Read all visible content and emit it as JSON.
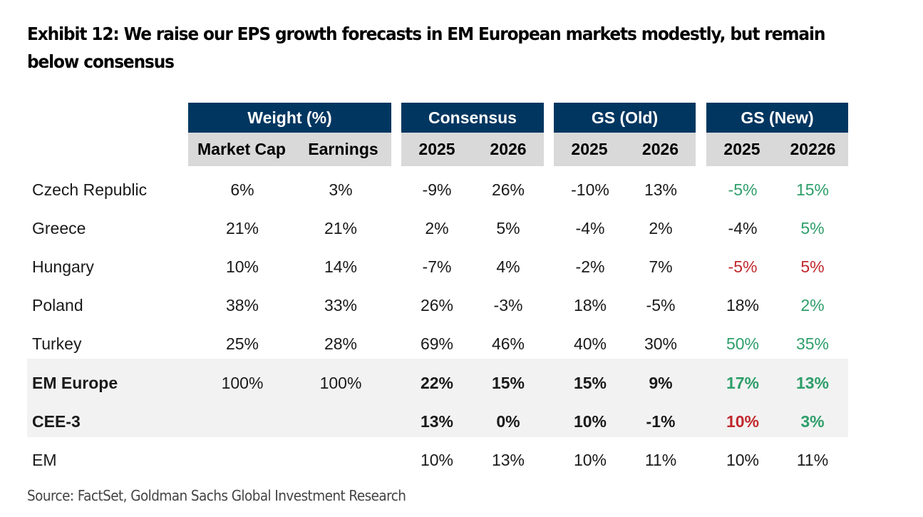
{
  "title": "Exhibit 12: We raise our EPS growth forecasts in EM European markets modestly, but remain below consensus",
  "source": "Source: FactSet, Goldman Sachs Global Investment Research",
  "colors": {
    "header_bg": "#003660",
    "subheader_bg": "#d9d9d9",
    "aggregate_band": "#f2f2f2",
    "positive_revision": "#2e9e6a",
    "negative_revision": "#c0282e"
  },
  "header": {
    "groups": [
      {
        "label": "Weight (%)",
        "columns": [
          "Market Cap",
          "Earnings"
        ]
      },
      {
        "label": "Consensus",
        "columns": [
          "2025",
          "2026"
        ]
      },
      {
        "label": "GS (Old)",
        "columns": [
          "2025",
          "2026"
        ]
      },
      {
        "label": "GS (New)",
        "columns": [
          "2025",
          "20226"
        ]
      }
    ]
  },
  "rows": [
    {
      "label": "Czech Republic",
      "bold": false,
      "values": [
        "6%",
        "3%",
        "-9%",
        "26%",
        "-10%",
        "13%",
        "-5%",
        "15%"
      ],
      "gs_new_colors": [
        "green",
        "green"
      ]
    },
    {
      "label": "Greece",
      "bold": false,
      "values": [
        "21%",
        "21%",
        "2%",
        "5%",
        "-4%",
        "2%",
        "-4%",
        "5%"
      ],
      "gs_new_colors": [
        "dark",
        "green"
      ]
    },
    {
      "label": "Hungary",
      "bold": false,
      "values": [
        "10%",
        "14%",
        "-7%",
        "4%",
        "-2%",
        "7%",
        "-5%",
        "5%"
      ],
      "gs_new_colors": [
        "red",
        "red"
      ]
    },
    {
      "label": "Poland",
      "bold": false,
      "values": [
        "38%",
        "33%",
        "26%",
        "-3%",
        "18%",
        "-5%",
        "18%",
        "2%"
      ],
      "gs_new_colors": [
        "dark",
        "green"
      ]
    },
    {
      "label": "Turkey",
      "bold": false,
      "values": [
        "25%",
        "28%",
        "69%",
        "46%",
        "40%",
        "30%",
        "50%",
        "35%"
      ],
      "gs_new_colors": [
        "green",
        "green"
      ]
    },
    {
      "label": "EM Europe",
      "bold": true,
      "values": [
        "100%",
        "100%",
        "22%",
        "15%",
        "15%",
        "9%",
        "17%",
        "13%"
      ],
      "gs_new_colors": [
        "green",
        "green"
      ]
    },
    {
      "label": "CEE-3",
      "bold": true,
      "values": [
        "",
        "",
        "13%",
        "0%",
        "10%",
        "-1%",
        "10%",
        "3%"
      ],
      "gs_new_colors": [
        "red",
        "green"
      ]
    },
    {
      "label": "EM",
      "bold": false,
      "values": [
        "",
        "",
        "10%",
        "13%",
        "10%",
        "11%",
        "10%",
        "11%"
      ],
      "gs_new_colors": [
        "dark",
        "dark"
      ]
    }
  ]
}
